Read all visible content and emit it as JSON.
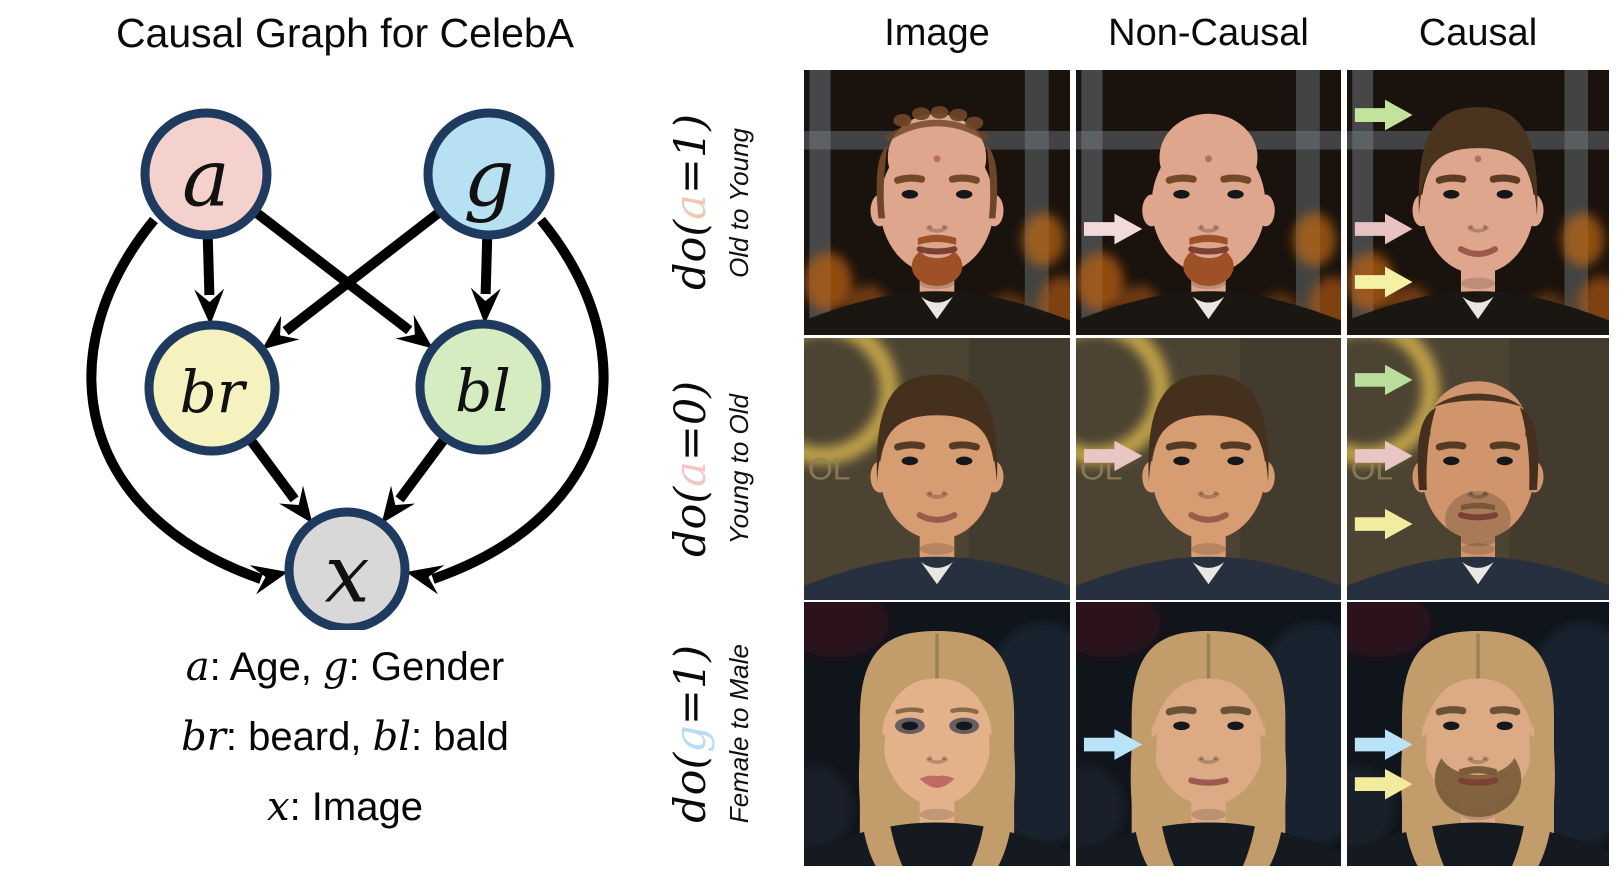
{
  "left": {
    "title": "Causal Graph for CelebA",
    "graph": {
      "node_border_color": "#1e3a5e",
      "edge_color": "#000000",
      "nodes": [
        {
          "id": "a",
          "label": "a",
          "fill": "#f4d1cd",
          "meaning": "Age"
        },
        {
          "id": "g",
          "label": "g",
          "fill": "#b7e0f2",
          "meaning": "Gender"
        },
        {
          "id": "br",
          "label": "br",
          "fill": "#f5f2c0",
          "meaning": "beard"
        },
        {
          "id": "bl",
          "label": "bl",
          "fill": "#d4ecc0",
          "meaning": "bald"
        },
        {
          "id": "x",
          "label": "x",
          "fill": "#d8d8d8",
          "meaning": "Image"
        }
      ],
      "edges": [
        {
          "from": "a",
          "to": "br"
        },
        {
          "from": "a",
          "to": "bl"
        },
        {
          "from": "g",
          "to": "br"
        },
        {
          "from": "g",
          "to": "bl"
        },
        {
          "from": "br",
          "to": "x"
        },
        {
          "from": "bl",
          "to": "x"
        },
        {
          "from": "a",
          "to": "x",
          "curve": "left"
        },
        {
          "from": "g",
          "to": "x",
          "curve": "right"
        }
      ]
    },
    "legend": [
      [
        {
          "var": "a"
        },
        {
          "text": ": Age, "
        },
        {
          "var": "g"
        },
        {
          "text": ": Gender"
        }
      ],
      [
        {
          "var": "br"
        },
        {
          "text": ": beard, "
        },
        {
          "var": "bl"
        },
        {
          "text": ": bald"
        }
      ],
      [
        {
          "var": "x"
        },
        {
          "text": ": Image"
        }
      ]
    ]
  },
  "right": {
    "columns": [
      "Image",
      "Non-Causal",
      "Causal"
    ],
    "rows": [
      {
        "do_prefix": "do(",
        "do_var": "a",
        "do_var_color": "#f0c9b2",
        "do_suffix": "=1)",
        "subtitle": "Old to Young",
        "cells": [
          {
            "depicts": "older man, thinning auburn hair, red goatee",
            "face": {
              "bg": "stage",
              "skin": "#dfa68e",
              "hair": "balding",
              "hair_color": "#6e4527",
              "brow": "#74492a",
              "beard": "goatee",
              "beard_color": "#9e5026",
              "mouth": "neutral",
              "mark": true,
              "suit": "#1a1611",
              "shirt": true
            },
            "arrows": []
          },
          {
            "depicts": "same man fully bald, goatee kept",
            "face": {
              "bg": "stage",
              "skin": "#dfa68e",
              "hair": "bald",
              "hair_color": "#6e4527",
              "brow": "#74492a",
              "beard": "goatee",
              "beard_color": "#9e5026",
              "mouth": "neutral",
              "mark": true,
              "suit": "#1a1611",
              "shirt": true
            },
            "arrows": [
              {
                "color": "#f0dada",
                "y": 60
              }
            ]
          },
          {
            "depicts": "same man young, full brown hair, clean shaven",
            "face": {
              "bg": "stage",
              "skin": "#dfa68e",
              "hair": "full",
              "hair_color": "#4a331f",
              "brow": "#5c3c24",
              "beard": null,
              "beard_color": null,
              "mouth": "smile",
              "mark": true,
              "suit": "#1a1611",
              "shirt": true
            },
            "arrows": [
              {
                "color": "#c3e29b",
                "y": 17
              },
              {
                "color": "#e6c3c1",
                "y": 60
              },
              {
                "color": "#f4f0a4",
                "y": 80
              }
            ]
          }
        ]
      },
      {
        "do_prefix": "do(",
        "do_var": "a",
        "do_var_color": "#f2c6c6",
        "do_suffix": "=0)",
        "subtitle": "Young to Old",
        "cells": [
          {
            "depicts": "young man, full swept brown hair, gold backdrop",
            "face": {
              "bg": "gold",
              "bg_text": "OL",
              "skin": "#d69c72",
              "hair": "full",
              "hair_color": "#45301d",
              "brow": "#553b24",
              "beard": null,
              "beard_color": null,
              "mouth": "smile",
              "mark": false,
              "suit": "#26303f",
              "shirt": true
            },
            "arrows": []
          },
          {
            "depicts": "same man, minor non-causal edit",
            "face": {
              "bg": "gold",
              "bg_text": "OL",
              "skin": "#d69c72",
              "hair": "full",
              "hair_color": "#45301d",
              "brow": "#553b24",
              "beard": null,
              "beard_color": null,
              "mouth": "smile",
              "mark": false,
              "suit": "#26303f",
              "shirt": true
            },
            "arrows": [
              {
                "color": "#e7c6c4",
                "y": 45
              }
            ]
          },
          {
            "depicts": "same man aged, receding hairline, stubble",
            "face": {
              "bg": "gold",
              "bg_text": "OL",
              "skin": "#d0956d",
              "hair": "receding",
              "hair_color": "#45301d",
              "brow": "#553b24",
              "beard": "stubble",
              "beard_color": "#503a28",
              "mouth": "neutral",
              "mark": false,
              "suit": "#26303f",
              "shirt": true
            },
            "arrows": [
              {
                "color": "#b9dd9a",
                "y": 16
              },
              {
                "color": "#e7c6c4",
                "y": 45
              },
              {
                "color": "#f1eda0",
                "y": 71
              }
            ]
          }
        ]
      },
      {
        "do_prefix": "do(",
        "do_var": "g",
        "do_var_color": "#b9ddf0",
        "do_suffix": "=1)",
        "subtitle": "Female to Male",
        "cells": [
          {
            "depicts": "blonde woman with smoky eye makeup",
            "face": {
              "bg": "night",
              "skin": "#e4b28a",
              "hair": "long",
              "hair_color": "#c29c6a",
              "brow": "#8a6a46",
              "beard": null,
              "beard_color": null,
              "mouth": "lips",
              "makeup": true,
              "mark": false,
              "suit": "#151920",
              "shirt": false
            },
            "arrows": []
          },
          {
            "depicts": "masculinized face, long blonde hair kept",
            "face": {
              "bg": "night",
              "skin": "#dcab85",
              "hair": "long",
              "hair_color": "#c29c6a",
              "brow": "#6b5436",
              "beard": null,
              "beard_color": null,
              "mouth": "neutral",
              "makeup": false,
              "mark": false,
              "suit": "#151920",
              "shirt": false
            },
            "arrows": [
              {
                "color": "#b9e3f6",
                "y": 54
              }
            ]
          },
          {
            "depicts": "masculinized face with beard and mustache",
            "face": {
              "bg": "night",
              "skin": "#dcab85",
              "hair": "long",
              "hair_color": "#c29c6a",
              "brow": "#6b5436",
              "beard": "fullbeard",
              "beard_color": "#7b5c3a",
              "mouth": "neutral",
              "makeup": false,
              "mark": false,
              "suit": "#151920",
              "shirt": false
            },
            "arrows": [
              {
                "color": "#b9e3f6",
                "y": 54
              },
              {
                "color": "#f2eb9e",
                "y": 69
              }
            ]
          }
        ]
      }
    ]
  }
}
